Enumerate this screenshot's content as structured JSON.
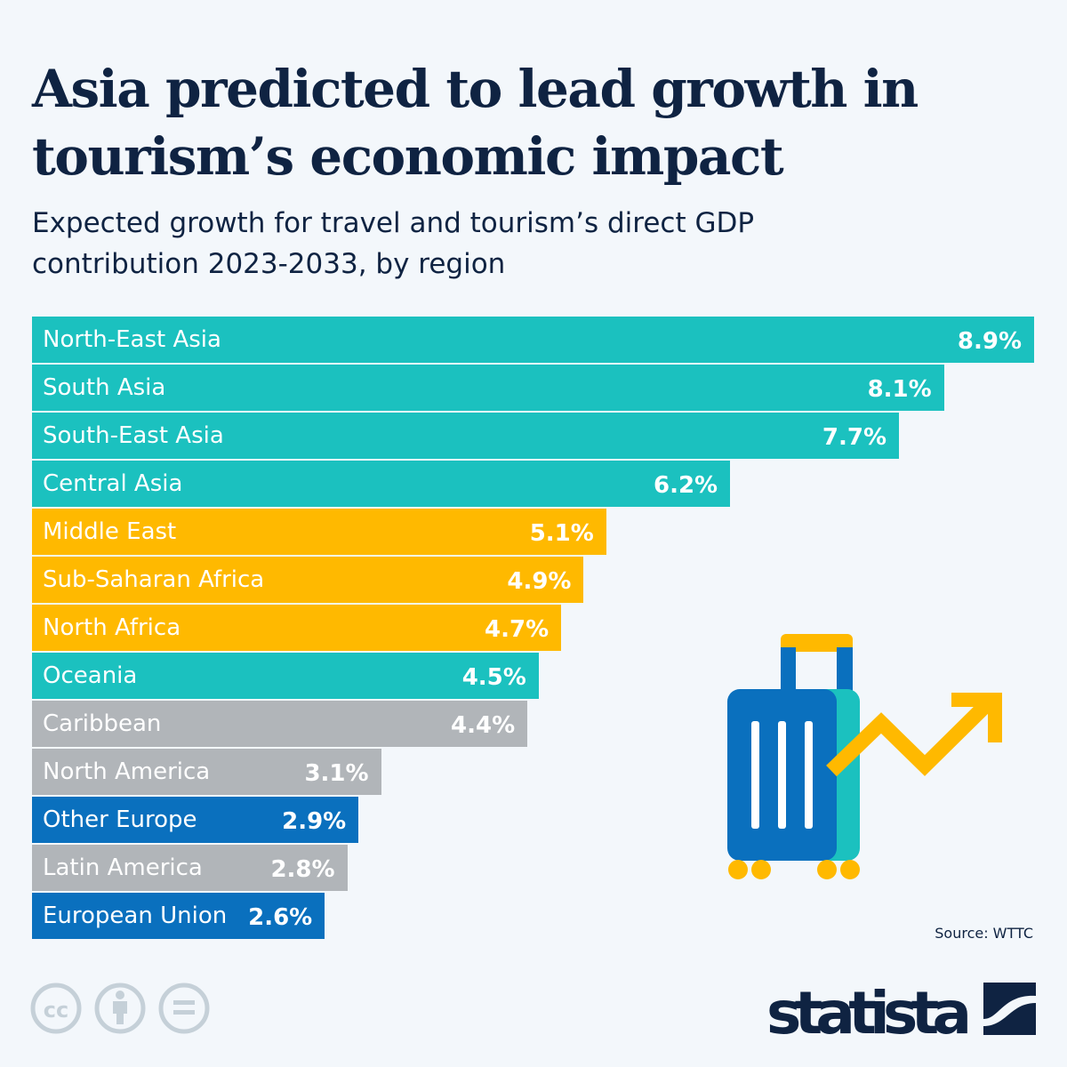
{
  "title": "Asia predicted to lead growth in tourism’s economic impact",
  "subtitle": "Expected growth for travel and tourism’s direct GDP contribution 2023-2033, by region",
  "source": "Source: WTTC",
  "brand": "statista",
  "license_icons": [
    "cc-icon",
    "attribution-icon",
    "no-derivatives-icon"
  ],
  "colors": {
    "asia": "#1bc1bf",
    "mena_africa": "#ffb900",
    "americas": "#b1b5b9",
    "europe": "#0a70be",
    "text": "#0f2342"
  },
  "chart_data": {
    "type": "bar",
    "orientation": "horizontal",
    "unit": "%",
    "xlim": [
      0,
      8.9
    ],
    "grid": false,
    "categories": [
      "North-East Asia",
      "South Asia",
      "South-East Asia",
      "Central Asia",
      "Middle East",
      "Sub-Saharan Africa",
      "North Africa",
      "Oceania",
      "Caribbean",
      "North America",
      "Other Europe",
      "Latin America",
      "European Union"
    ],
    "values": [
      8.9,
      8.1,
      7.7,
      6.2,
      5.1,
      4.9,
      4.7,
      4.5,
      4.4,
      3.1,
      2.9,
      2.8,
      2.6
    ],
    "labels": [
      "8.9%",
      "8.1%",
      "7.7%",
      "6.2%",
      "5.1%",
      "4.9%",
      "4.7%",
      "4.5%",
      "4.4%",
      "3.1%",
      "2.9%",
      "2.8%",
      "2.6%"
    ],
    "bar_colors": [
      "#1bc1bf",
      "#1bc1bf",
      "#1bc1bf",
      "#1bc1bf",
      "#ffb900",
      "#ffb900",
      "#ffb900",
      "#1bc1bf",
      "#b1b5b9",
      "#b1b5b9",
      "#0a70be",
      "#b1b5b9",
      "#0a70be"
    ]
  }
}
